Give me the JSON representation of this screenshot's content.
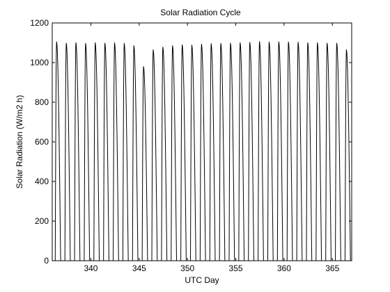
{
  "chart_data": {
    "type": "line",
    "title": "Solar Radiation Cycle",
    "xlabel": "UTC Day",
    "ylabel": "Solar Radiation (W/m2 h)",
    "xlim": [
      336,
      367
    ],
    "ylim": [
      0,
      1200
    ],
    "xticks": [
      340,
      345,
      350,
      355,
      360,
      365
    ],
    "yticks": [
      0,
      200,
      400,
      600,
      800,
      1000,
      1200
    ],
    "grid": false,
    "line_color": "#000000",
    "series": [
      {
        "peaks": [
          {
            "day": 336.45,
            "value": 1105
          },
          {
            "day": 337.45,
            "value": 1098
          },
          {
            "day": 338.45,
            "value": 1100
          },
          {
            "day": 339.45,
            "value": 1097
          },
          {
            "day": 340.45,
            "value": 1100
          },
          {
            "day": 341.45,
            "value": 1098
          },
          {
            "day": 342.45,
            "value": 1100
          },
          {
            "day": 343.45,
            "value": 1097
          },
          {
            "day": 344.45,
            "value": 1085
          },
          {
            "day": 345.45,
            "value": 980
          },
          {
            "day": 346.45,
            "value": 1065
          },
          {
            "day": 347.45,
            "value": 1078
          },
          {
            "day": 348.45,
            "value": 1085
          },
          {
            "day": 349.45,
            "value": 1090
          },
          {
            "day": 350.45,
            "value": 1088
          },
          {
            "day": 351.45,
            "value": 1093
          },
          {
            "day": 352.45,
            "value": 1095
          },
          {
            "day": 353.45,
            "value": 1097
          },
          {
            "day": 354.45,
            "value": 1098
          },
          {
            "day": 355.45,
            "value": 1100
          },
          {
            "day": 356.45,
            "value": 1102
          },
          {
            "day": 357.45,
            "value": 1106
          },
          {
            "day": 358.45,
            "value": 1104
          },
          {
            "day": 359.45,
            "value": 1105
          },
          {
            "day": 360.45,
            "value": 1104
          },
          {
            "day": 361.45,
            "value": 1103
          },
          {
            "day": 362.45,
            "value": 1100
          },
          {
            "day": 363.45,
            "value": 1100
          },
          {
            "day": 364.45,
            "value": 1098
          },
          {
            "day": 365.45,
            "value": 1098
          },
          {
            "day": 366.45,
            "value": 1065
          }
        ]
      }
    ]
  }
}
